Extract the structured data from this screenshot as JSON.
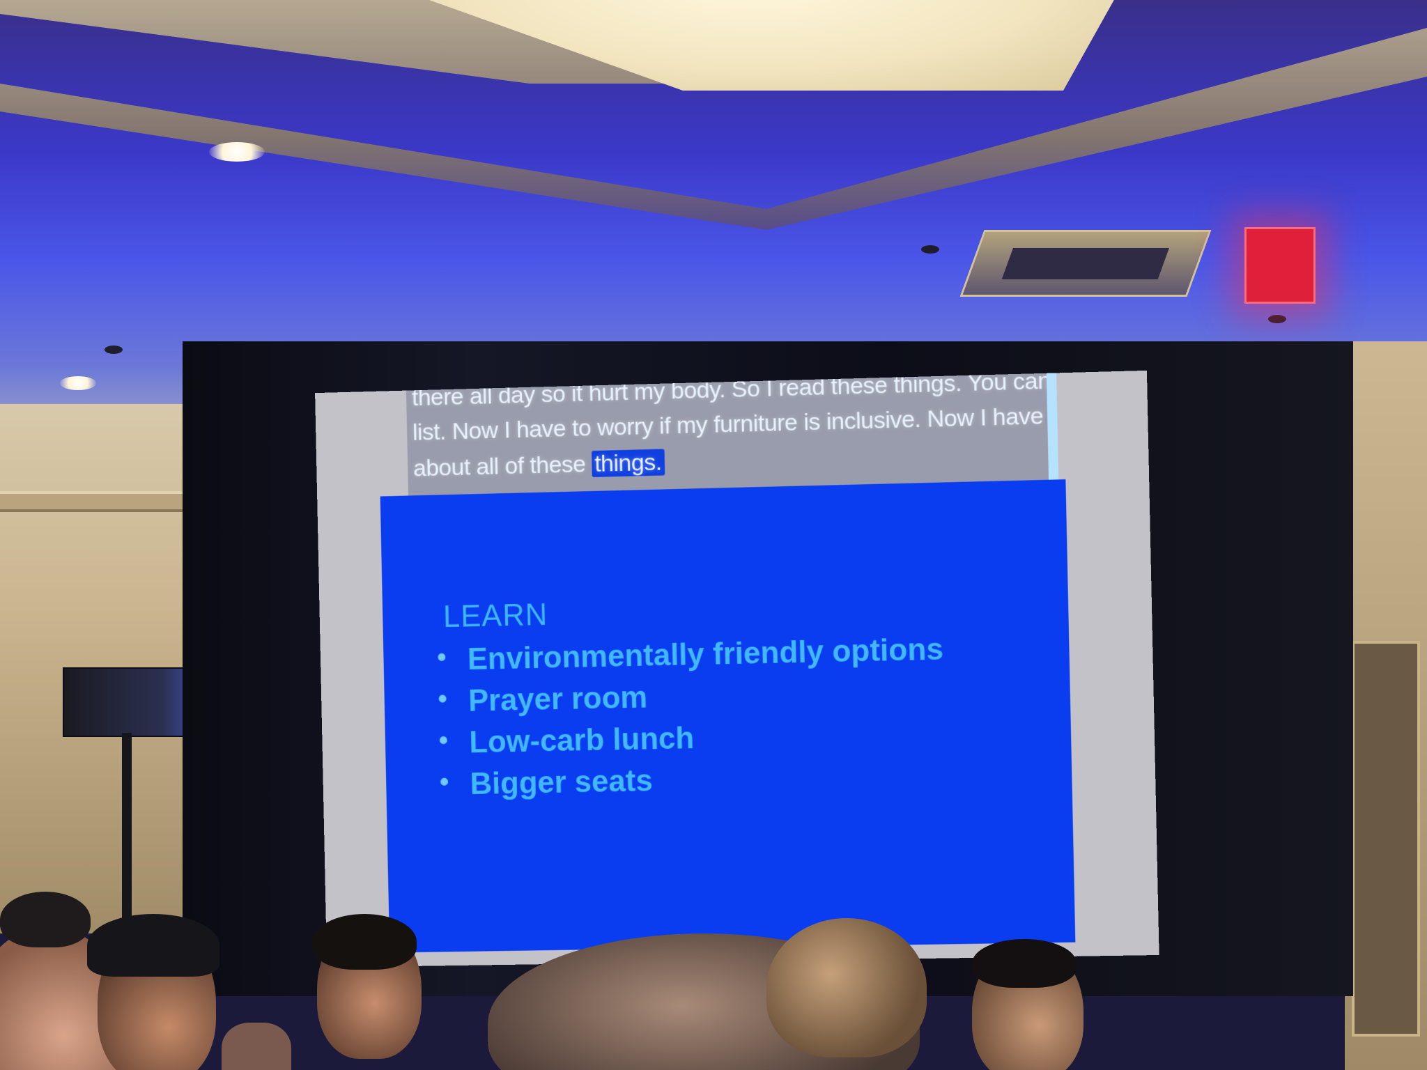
{
  "scene": {
    "description_label": "Conference room presentation"
  },
  "exit_sign": {
    "color": "#e0203a"
  },
  "slide": {
    "background_color": "#0a3cf0",
    "text_color": "#42b9ff",
    "title": "LEARN",
    "items": [
      "Environmentally friendly options",
      "Prayer room",
      "Low-carb lunch",
      "Bigger seats"
    ],
    "bullet": "•"
  },
  "captions": {
    "line_0": "there all day so it hurt my body. So I read these things. You can see this",
    "line_1": "list. Now I have to worry if my furniture is inclusive. Now I have to think",
    "line_2_text": "about all of these ",
    "line_2_highlight": "things."
  }
}
